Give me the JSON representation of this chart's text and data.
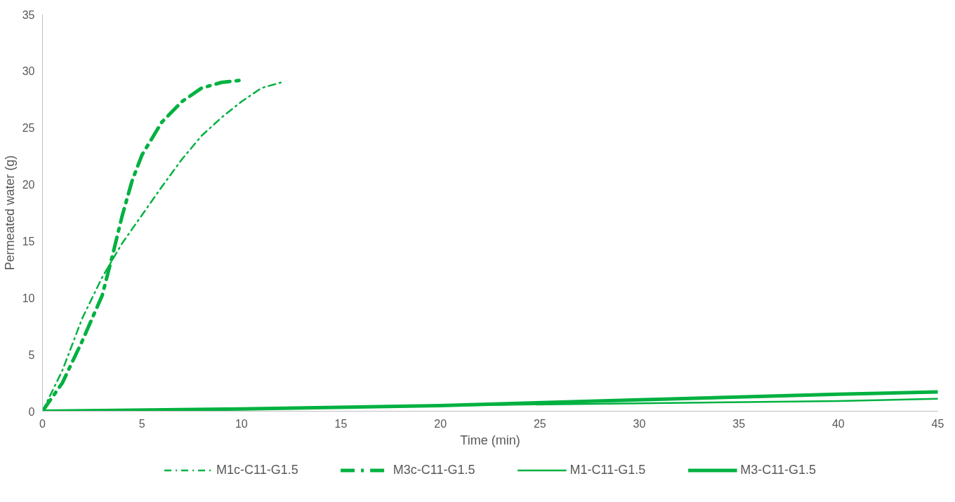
{
  "chart_data": {
    "type": "line",
    "xlabel": "Time (min)",
    "ylabel": "Permeated water (g)",
    "xlim": [
      0,
      45
    ],
    "xticks": [
      0,
      5,
      10,
      15,
      20,
      25,
      30,
      35,
      40,
      45
    ],
    "ylim": [
      0,
      35
    ],
    "yticks": [
      0,
      5,
      10,
      15,
      20,
      25,
      30,
      35
    ],
    "grid": false,
    "legend": "bottom",
    "marker": "none",
    "series": [
      {
        "name": "M1c-C11-G1.5",
        "color": "#00b140",
        "line_style": "dashdot",
        "x": [
          0,
          1,
          2,
          3,
          4,
          5,
          6,
          7,
          8,
          9,
          10,
          11,
          12
        ],
        "values": [
          0,
          3.6,
          8.2,
          11.8,
          14.8,
          17.3,
          19.8,
          22.2,
          24.3,
          25.9,
          27.3,
          28.5,
          29
        ]
      },
      {
        "name": "M3c-C11-G1.5",
        "color": "#00b140",
        "line_style": "dashdot",
        "x": [
          0,
          1,
          2,
          3,
          3.5,
          4,
          4.5,
          5,
          6,
          7,
          8,
          9,
          10
        ],
        "values": [
          0,
          2.5,
          6.2,
          10.2,
          13.6,
          17.2,
          20.3,
          22.6,
          25.5,
          27.3,
          28.5,
          29,
          29.2
        ]
      },
      {
        "name": "M1-C11-G1.5",
        "color": "#00b140",
        "line_style": "solid",
        "x": [
          0,
          10,
          20,
          30,
          40,
          45
        ],
        "values": [
          0,
          0.2,
          0.5,
          0.7,
          0.9,
          1.1
        ]
      },
      {
        "name": "M3-C11-G1.5",
        "color": "#00b140",
        "line_style": "solid",
        "x": [
          0,
          10,
          20,
          30,
          40,
          45
        ],
        "values": [
          0,
          0.2,
          0.5,
          1,
          1.5,
          1.7
        ]
      }
    ]
  }
}
